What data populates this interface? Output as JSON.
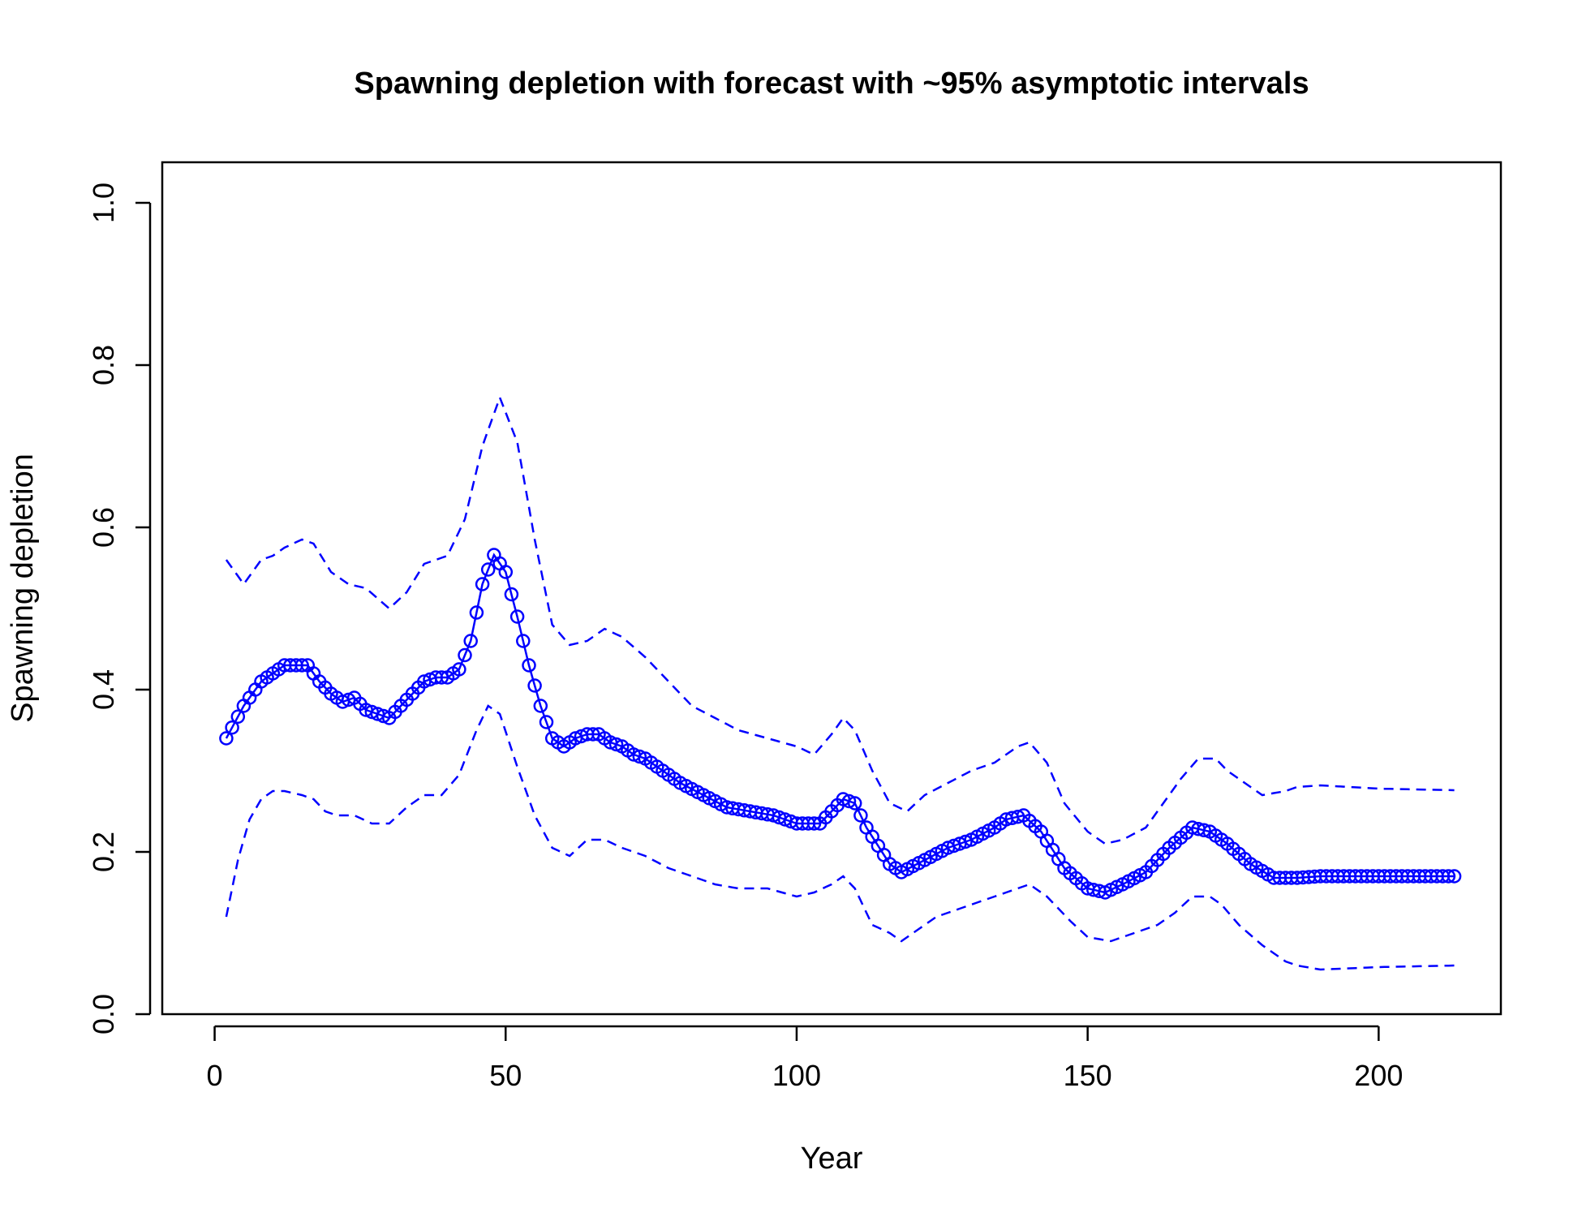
{
  "chart_data": {
    "type": "line",
    "title": "Spawning depletion with forecast with ~95% asymptotic intervals",
    "xlabel": "Year",
    "ylabel": "Spawning depletion",
    "xlim": [
      -9,
      221
    ],
    "ylim": [
      0,
      1.05
    ],
    "x_ticks": [
      0,
      50,
      100,
      150,
      200
    ],
    "x_tick_labels": [
      "0",
      "50",
      "100",
      "150",
      "200"
    ],
    "y_ticks": [
      0.0,
      0.2,
      0.4,
      0.6,
      0.8,
      1.0
    ],
    "y_tick_labels": [
      "0.0",
      "0.2",
      "0.4",
      "0.6",
      "0.8",
      "1.0"
    ],
    "grid": false,
    "legend": "none",
    "colors": {
      "series": "#0000ff",
      "axis": "#000000"
    },
    "series": [
      {
        "role": "estimate",
        "style": "line-with-circles",
        "knots_x": [
          2,
          5,
          8,
          10,
          12,
          14,
          16,
          18,
          20,
          22,
          24,
          26,
          28,
          30,
          32,
          34,
          36,
          38,
          40,
          42,
          44,
          46,
          48,
          50,
          52,
          54,
          56,
          58,
          60,
          62,
          64,
          66,
          68,
          70,
          72,
          74,
          76,
          80,
          84,
          88,
          92,
          96,
          100,
          104,
          106,
          108,
          110,
          112,
          116,
          118,
          122,
          126,
          130,
          134,
          136,
          139,
          142,
          146,
          150,
          153,
          156,
          160,
          164,
          168,
          171,
          174,
          178,
          182,
          186,
          190,
          200,
          213
        ],
        "knots_y": [
          0.34,
          0.38,
          0.41,
          0.42,
          0.43,
          0.43,
          0.43,
          0.41,
          0.395,
          0.385,
          0.39,
          0.375,
          0.37,
          0.365,
          0.38,
          0.395,
          0.41,
          0.415,
          0.415,
          0.425,
          0.46,
          0.53,
          0.566,
          0.545,
          0.49,
          0.43,
          0.38,
          0.34,
          0.33,
          0.34,
          0.345,
          0.345,
          0.335,
          0.33,
          0.32,
          0.315,
          0.305,
          0.285,
          0.27,
          0.255,
          0.25,
          0.245,
          0.235,
          0.235,
          0.25,
          0.265,
          0.26,
          0.23,
          0.185,
          0.175,
          0.19,
          0.205,
          0.215,
          0.23,
          0.24,
          0.245,
          0.225,
          0.18,
          0.155,
          0.15,
          0.16,
          0.175,
          0.205,
          0.23,
          0.225,
          0.21,
          0.185,
          0.168,
          0.168,
          0.17,
          0.17,
          0.17
        ]
      },
      {
        "role": "upper interval",
        "style": "dashed",
        "knots_x": [
          2,
          5,
          8,
          10,
          12,
          15,
          17,
          20,
          23,
          26,
          30,
          33,
          36,
          40,
          43,
          46,
          49,
          52,
          55,
          58,
          61,
          64,
          67,
          70,
          74,
          78,
          82,
          86,
          90,
          95,
          100,
          103,
          106,
          108,
          110,
          113,
          116,
          119,
          122,
          126,
          130,
          134,
          138,
          140,
          143,
          146,
          150,
          153,
          156,
          160,
          163,
          166,
          169,
          172,
          174,
          178,
          180,
          184,
          186,
          190,
          200,
          213
        ],
        "knots_y": [
          0.56,
          0.53,
          0.56,
          0.565,
          0.575,
          0.585,
          0.58,
          0.545,
          0.53,
          0.525,
          0.5,
          0.52,
          0.555,
          0.565,
          0.61,
          0.7,
          0.76,
          0.705,
          0.585,
          0.48,
          0.455,
          0.46,
          0.475,
          0.465,
          0.44,
          0.41,
          0.38,
          0.365,
          0.35,
          0.34,
          0.33,
          0.32,
          0.345,
          0.365,
          0.35,
          0.3,
          0.26,
          0.25,
          0.27,
          0.285,
          0.3,
          0.31,
          0.33,
          0.335,
          0.31,
          0.26,
          0.225,
          0.21,
          0.215,
          0.23,
          0.26,
          0.29,
          0.315,
          0.315,
          0.3,
          0.28,
          0.27,
          0.275,
          0.28,
          0.282,
          0.278,
          0.276
        ]
      },
      {
        "role": "lower interval",
        "style": "dashed",
        "knots_x": [
          2,
          4,
          6,
          8,
          10,
          12,
          15,
          17,
          19,
          21,
          24,
          27,
          30,
          33,
          36,
          39,
          42,
          45,
          47,
          49,
          52,
          55,
          58,
          61,
          64,
          67,
          70,
          74,
          78,
          82,
          86,
          90,
          95,
          100,
          103,
          106,
          108,
          110,
          113,
          116,
          118,
          121,
          124,
          128,
          132,
          136,
          140,
          143,
          147,
          150,
          154,
          158,
          162,
          165,
          168,
          171,
          173,
          176,
          180,
          184,
          186,
          190,
          200,
          213
        ],
        "knots_y": [
          0.12,
          0.19,
          0.24,
          0.265,
          0.275,
          0.275,
          0.27,
          0.265,
          0.25,
          0.245,
          0.245,
          0.235,
          0.235,
          0.255,
          0.27,
          0.27,
          0.295,
          0.35,
          0.38,
          0.37,
          0.305,
          0.245,
          0.205,
          0.195,
          0.215,
          0.215,
          0.205,
          0.195,
          0.18,
          0.17,
          0.16,
          0.155,
          0.155,
          0.145,
          0.15,
          0.16,
          0.17,
          0.155,
          0.11,
          0.1,
          0.09,
          0.105,
          0.12,
          0.13,
          0.14,
          0.15,
          0.16,
          0.145,
          0.115,
          0.095,
          0.09,
          0.1,
          0.11,
          0.125,
          0.145,
          0.145,
          0.135,
          0.11,
          0.085,
          0.065,
          0.06,
          0.055,
          0.058,
          0.06
        ]
      }
    ]
  }
}
